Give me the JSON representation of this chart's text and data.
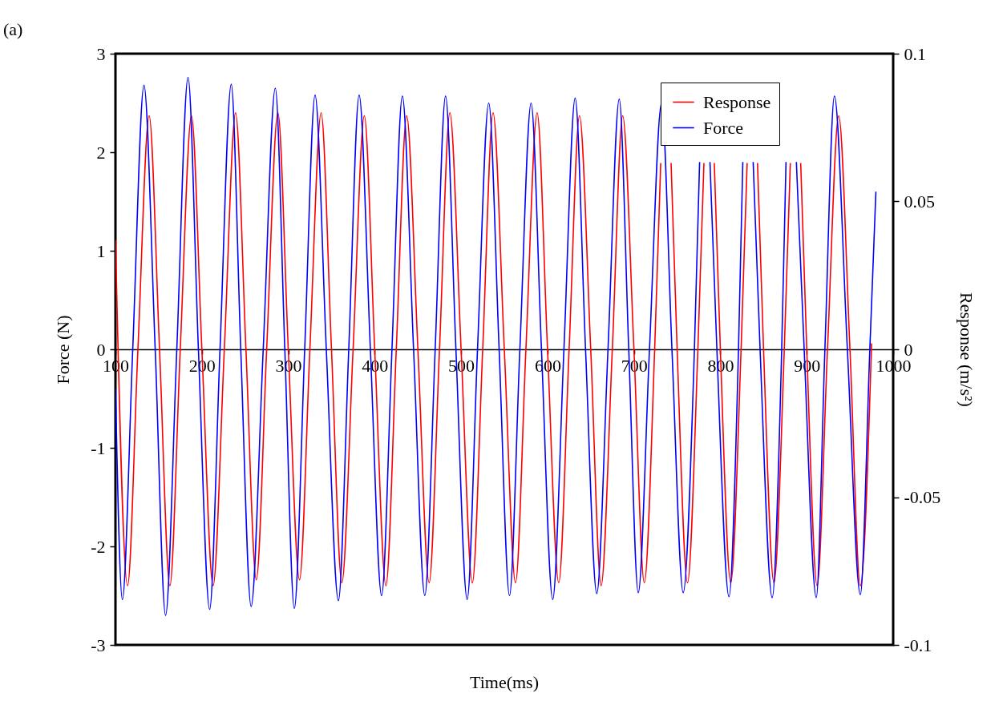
{
  "chart_data": {
    "type": "line",
    "xlabel": "Time(ms)",
    "ylabel": "Force (N)",
    "y2label": "Response (m/s²)",
    "annotations": [
      "(a)"
    ],
    "xlim": [
      100,
      1000
    ],
    "xticks": [
      100,
      200,
      300,
      400,
      500,
      600,
      700,
      800,
      900,
      1000
    ],
    "ylim": [
      -3,
      3
    ],
    "yticks": [
      -3,
      -2,
      -1,
      0,
      1,
      2,
      3
    ],
    "y2lim": [
      -0.1,
      0.1
    ],
    "y2ticks": [
      -0.1,
      -0.05,
      0,
      0.05,
      0.1
    ],
    "grid": false,
    "legend": "top right",
    "series": [
      {
        "name": "Response",
        "color": "#ff0000",
        "axis": "y2",
        "x": [
          100,
          114,
          126,
          139,
          151,
          163,
          175,
          188,
          200,
          213,
          226,
          239,
          251,
          263,
          275,
          288,
          300,
          313,
          325,
          338,
          350,
          362,
          375,
          388,
          400,
          413,
          425,
          437,
          450,
          463,
          475,
          487,
          500,
          513,
          525,
          537,
          550,
          563,
          575,
          588,
          600,
          613,
          625,
          637,
          650,
          662,
          675,
          687,
          700,
          712,
          724,
          731,
          737,
          743,
          750,
          762,
          774,
          781,
          787,
          793,
          800,
          812,
          824,
          831,
          837,
          843,
          850,
          862,
          874,
          881,
          887,
          893,
          900,
          912,
          924,
          937,
          950,
          962,
          975
        ],
        "values": [
          0.037,
          -0.08,
          0,
          0.079,
          0,
          -0.08,
          0,
          0.079,
          0,
          -0.08,
          0,
          0.08,
          0,
          -0.078,
          0,
          0.08,
          0,
          -0.078,
          0,
          0.08,
          0,
          -0.079,
          0,
          0.079,
          0,
          -0.08,
          0,
          0.079,
          0,
          -0.079,
          0,
          0.08,
          0,
          -0.079,
          0,
          0.08,
          0,
          -0.079,
          0,
          0.08,
          0,
          -0.079,
          0,
          0.079,
          0,
          -0.08,
          0,
          0.079,
          0,
          -0.079,
          0,
          0.063,
          null,
          0.063,
          0,
          -0.079,
          0,
          0.063,
          null,
          0.063,
          0,
          -0.079,
          0,
          0.063,
          null,
          0.063,
          0,
          -0.079,
          0,
          0.063,
          null,
          0.063,
          0,
          -0.08,
          0,
          0.079,
          0,
          -0.08,
          0.002
        ]
      },
      {
        "name": "Force",
        "color": "#0000ff",
        "x": [
          100,
          108,
          120,
          133,
          146,
          158,
          171,
          184,
          196,
          209,
          221,
          234,
          245,
          257,
          271,
          285,
          296,
          307,
          319,
          331,
          344,
          358,
          370,
          382,
          395,
          408,
          420,
          432,
          445,
          458,
          470,
          482,
          494,
          507,
          519,
          532,
          544,
          556,
          568,
          581,
          593,
          606,
          619,
          632,
          644,
          657,
          670,
          683,
          694,
          705,
          718,
          732,
          744,
          757,
          770,
          776,
          782,
          788,
          796,
          810,
          821,
          826,
          832,
          838,
          846,
          860,
          871,
          876,
          882,
          888,
          897,
          911,
          921,
          932,
          947,
          962,
          973,
          980
        ],
        "values": [
          -0.4,
          -2.54,
          0,
          2.68,
          0,
          -2.7,
          0,
          2.76,
          0,
          -2.64,
          0,
          2.69,
          0,
          -2.61,
          0,
          2.65,
          0,
          -2.63,
          0,
          2.58,
          0,
          -2.55,
          0,
          2.58,
          0,
          -2.5,
          0,
          2.57,
          0,
          -2.5,
          0,
          2.57,
          0,
          -2.54,
          0,
          2.5,
          0,
          -2.5,
          0,
          2.5,
          0,
          -2.54,
          0,
          2.55,
          0,
          -2.48,
          0,
          2.54,
          0,
          -2.47,
          0,
          2.5,
          0,
          -2.47,
          0,
          1.9,
          null,
          1.9,
          0,
          -2.51,
          0,
          1.9,
          null,
          1.9,
          0,
          -2.52,
          0,
          1.9,
          null,
          1.9,
          0,
          -2.52,
          0,
          2.57,
          0,
          -2.49,
          0,
          1.6
        ]
      }
    ]
  }
}
